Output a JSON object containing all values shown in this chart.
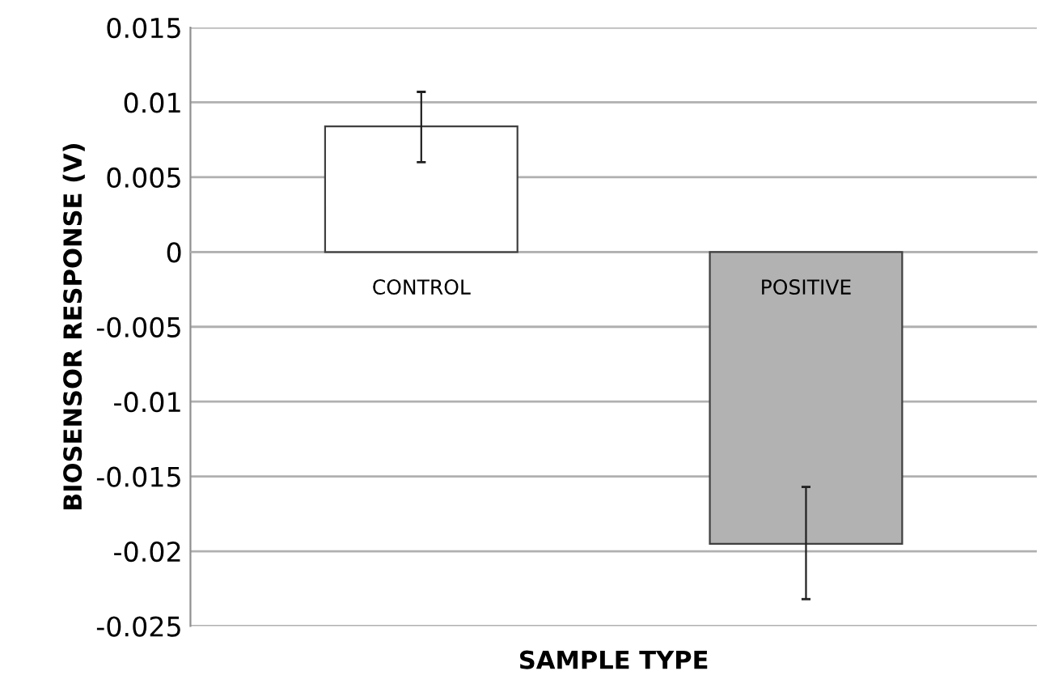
{
  "chart_data": {
    "type": "bar",
    "xlabel": "SAMPLE TYPE",
    "ylabel": "BIOSENSOR RESPONSE (V)",
    "categories": [
      "CONTROL",
      "POSITIVE"
    ],
    "values": [
      0.0084,
      -0.0195
    ],
    "errors": [
      [
        0.006,
        0.0107
      ],
      [
        -0.0232,
        -0.0157
      ]
    ],
    "colors": [
      "#ffffff",
      "#b2b2b2"
    ],
    "ylim": [
      -0.025,
      0.015
    ],
    "yticks": [
      -0.025,
      -0.02,
      -0.015,
      -0.01,
      -0.005,
      0,
      0.005,
      0.01,
      0.015
    ],
    "grid": "y",
    "legend": false
  }
}
